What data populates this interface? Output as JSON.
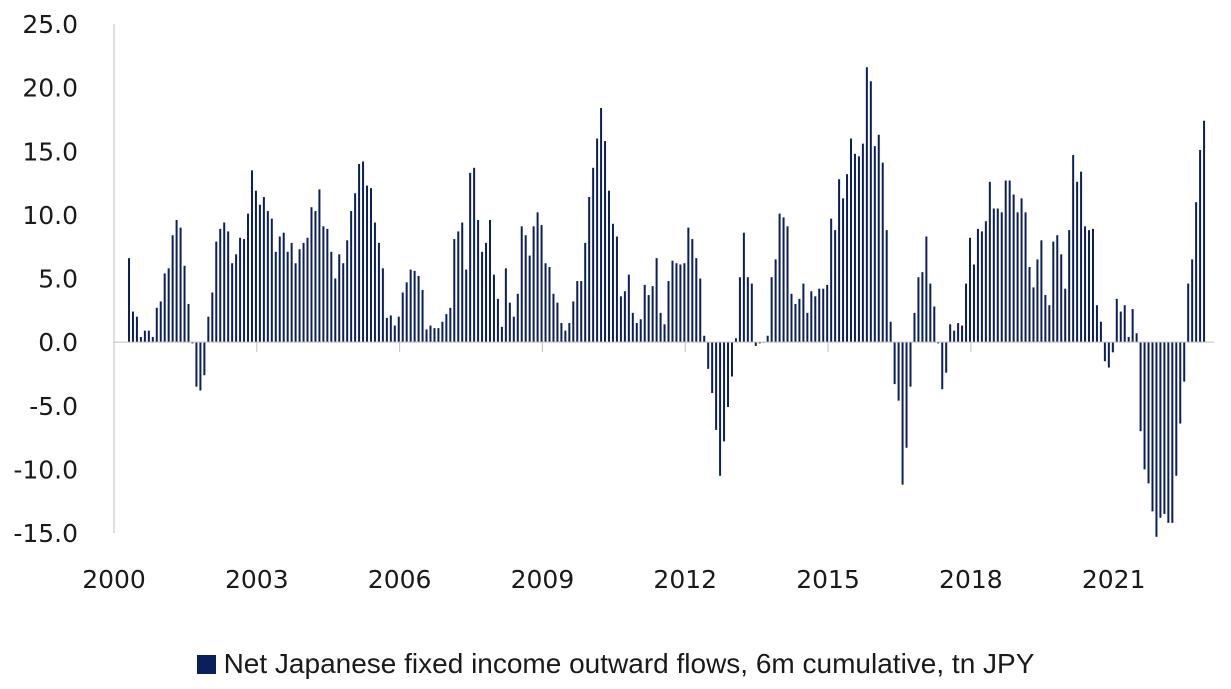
{
  "chart_data": {
    "type": "bar",
    "title": "",
    "xlabel": "",
    "ylabel": "",
    "ylim": [
      -15,
      25
    ],
    "y_ticks": [
      "25.0",
      "20.0",
      "15.0",
      "10.0",
      "5.0",
      "0.0",
      "-5.0",
      "-10.0",
      "-15.0"
    ],
    "x_ticks": [
      "2000",
      "2003",
      "2006",
      "2009",
      "2012",
      "2015",
      "2018",
      "2021"
    ],
    "x_start": "2000-01",
    "frequency": "monthly",
    "color": "#0b1f5c",
    "legend": "top-level below chart",
    "series": [
      {
        "name": "Net Japanese fixed income outward flows, 6m cumulative, tn JPY",
        "values": [
          6.6,
          2.4,
          2.0,
          0.4,
          0.9,
          0.9,
          0.4,
          2.7,
          3.2,
          5.4,
          5.8,
          8.4,
          9.6,
          9.0,
          6.0,
          3.0,
          -0.1,
          -3.5,
          -3.8,
          -2.6,
          2.0,
          3.9,
          7.9,
          8.9,
          9.4,
          8.7,
          6.2,
          6.9,
          8.2,
          8.1,
          10.1,
          13.5,
          11.9,
          10.8,
          11.4,
          10.3,
          9.7,
          7.1,
          8.3,
          8.6,
          7.1,
          7.8,
          6.2,
          7.3,
          7.8,
          8.2,
          10.6,
          10.3,
          12.0,
          9.1,
          8.9,
          7.1,
          5.0,
          6.9,
          6.2,
          8.0,
          10.3,
          11.7,
          14.0,
          14.2,
          12.3,
          12.1,
          9.4,
          7.8,
          5.8,
          1.9,
          2.1,
          1.3,
          2.0,
          3.9,
          4.7,
          5.7,
          5.6,
          5.2,
          4.1,
          1.0,
          1.3,
          1.1,
          1.1,
          1.6,
          2.2,
          2.7,
          8.1,
          8.7,
          9.4,
          5.7,
          13.3,
          13.7,
          9.6,
          7.1,
          7.8,
          9.6,
          5.3,
          3.4,
          1.2,
          5.8,
          3.1,
          2.0,
          3.8,
          9.1,
          8.4,
          6.8,
          9.1,
          10.2,
          9.2,
          6.2,
          5.9,
          3.8,
          3.1,
          1.5,
          0.9,
          1.5,
          3.2,
          4.8,
          4.8,
          7.8,
          11.4,
          13.7,
          16.0,
          18.4,
          15.8,
          11.9,
          9.3,
          8.3,
          3.6,
          4.0,
          5.3,
          2.3,
          1.5,
          1.8,
          4.5,
          3.7,
          4.4,
          6.6,
          2.3,
          1.4,
          4.8,
          6.4,
          6.2,
          6.1,
          6.2,
          9.0,
          8.1,
          6.6,
          5.0,
          0.5,
          -2.1,
          -4.0,
          -6.9,
          -10.5,
          -7.8,
          -5.1,
          -2.7,
          0.3,
          5.1,
          8.6,
          5.1,
          4.6,
          -0.3,
          -0.1,
          0.0,
          0.5,
          5.1,
          6.5,
          10.1,
          9.8,
          9.1,
          3.8,
          3.0,
          3.4,
          4.6,
          2.3,
          4.0,
          3.6,
          4.2,
          4.2,
          4.5,
          9.7,
          8.8,
          12.8,
          11.3,
          13.2,
          16.0,
          14.8,
          14.6,
          15.6,
          21.6,
          20.5,
          15.4,
          16.3,
          14.1,
          8.8,
          1.6,
          -3.3,
          -4.6,
          -11.2,
          -8.3,
          -3.5,
          2.3,
          5.1,
          5.5,
          8.3,
          4.6,
          2.8,
          -0.1,
          -3.7,
          -2.4,
          1.4,
          0.9,
          1.5,
          1.3,
          4.6,
          8.2,
          6.1,
          8.9,
          8.7,
          9.5,
          12.6,
          10.5,
          10.5,
          10.2,
          12.7,
          12.7,
          11.6,
          10.2,
          11.3,
          10.2,
          5.9,
          4.3,
          6.5,
          8.0,
          3.7,
          2.9,
          7.9,
          8.4,
          6.9,
          4.2,
          8.8,
          14.7,
          12.6,
          13.4,
          9.1,
          8.8,
          8.9,
          2.9,
          1.6,
          -1.5,
          -2.0,
          -0.8,
          3.4,
          2.4,
          2.9,
          0.4,
          2.6,
          0.7,
          -7.0,
          -10.0,
          -11.1,
          -13.3,
          -15.3,
          -13.8,
          -13.5,
          -14.2,
          -14.2,
          -10.5,
          -6.4,
          -3.1,
          4.6,
          6.5,
          11.0,
          15.1,
          17.4
        ]
      }
    ]
  }
}
